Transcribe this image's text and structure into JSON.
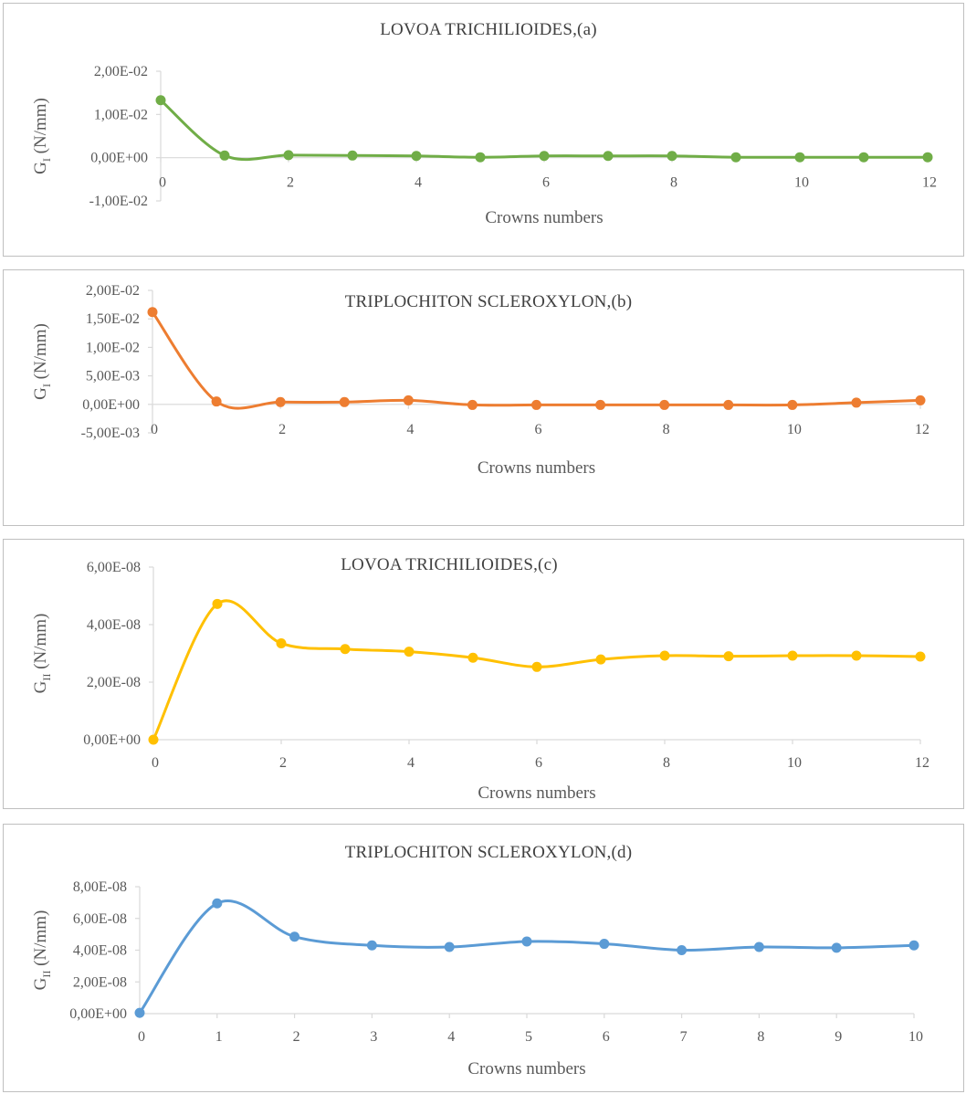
{
  "chart_data": [
    {
      "type": "line",
      "title": "LOVOA TRICHILIOIDES,(a)",
      "xlabel": "Crowns numbers",
      "ylabel": "G",
      "ylabel_sub": "I",
      "ylabel_unit": " (N/mm)",
      "ylim": [
        -0.01,
        0.02
      ],
      "yticks": [
        -0.01,
        0,
        0.01,
        0.02
      ],
      "ytick_labels": [
        "-1,00E-02",
        "0,00E+00",
        "1,00E-02",
        "2,00E-02"
      ],
      "xlim": [
        0,
        12
      ],
      "xticks": [
        0,
        2,
        4,
        6,
        8,
        10,
        12
      ],
      "xtick_labels": [
        "0",
        "2",
        "4",
        "6",
        "8",
        "10",
        "12"
      ],
      "x": [
        0,
        1,
        2,
        3,
        4,
        5,
        6,
        7,
        8,
        9,
        10,
        11,
        12
      ],
      "series": [
        {
          "color": "#70ad47",
          "values": [
            0.0133,
            0.0005,
            0.0006,
            0.0005,
            0.0004,
            0.0001,
            0.0004,
            0.0004,
            0.0004,
            0.0001,
            0.0001,
            0.0001,
            0.0001
          ]
        }
      ]
    },
    {
      "type": "line",
      "title": "TRIPLOCHITON SCLEROXYLON,(b)",
      "xlabel": "Crowns numbers",
      "ylabel": "G",
      "ylabel_sub": "I",
      "ylabel_unit": " (N/mm)",
      "ylim": [
        -0.005,
        0.02
      ],
      "yticks": [
        -0.005,
        0,
        0.005,
        0.01,
        0.015,
        0.02
      ],
      "ytick_labels": [
        "-5,00E-03",
        "0,00E+00",
        "5,00E-03",
        "1,00E-02",
        "1,50E-02",
        "2,00E-02"
      ],
      "xlim": [
        0,
        12
      ],
      "xticks": [
        0,
        2,
        4,
        6,
        8,
        10,
        12
      ],
      "xtick_labels": [
        "0",
        "2",
        "4",
        "6",
        "8",
        "10",
        "12"
      ],
      "x": [
        0,
        1,
        2,
        3,
        4,
        5,
        6,
        7,
        8,
        9,
        10,
        11,
        12
      ],
      "series": [
        {
          "color": "#ed7d31",
          "values": [
            0.0162,
            0.0005,
            0.0004,
            0.0004,
            0.0007,
            -0.0001,
            -0.0001,
            -0.0001,
            -0.0001,
            -0.0001,
            -0.0001,
            0.0003,
            0.0007
          ]
        }
      ]
    },
    {
      "type": "line",
      "title": "LOVOA TRICHILIOIDES,(c)",
      "xlabel": "Crowns numbers",
      "ylabel": "G",
      "ylabel_sub": "II",
      "ylabel_unit": " (N/mm)",
      "ylim": [
        0,
        6e-08
      ],
      "yticks": [
        0,
        2e-08,
        4e-08,
        6e-08
      ],
      "ytick_labels": [
        "0,00E+00",
        "2,00E-08",
        "4,00E-08",
        "6,00E-08"
      ],
      "xlim": [
        0,
        12
      ],
      "xticks": [
        0,
        2,
        4,
        6,
        8,
        10,
        12
      ],
      "xtick_labels": [
        "0",
        "2",
        "4",
        "6",
        "8",
        "10",
        "12"
      ],
      "x": [
        0,
        1,
        2,
        3,
        4,
        5,
        6,
        7,
        8,
        9,
        10,
        11,
        12
      ],
      "series": [
        {
          "color": "#ffc000",
          "values": [
            0,
            4.72e-08,
            3.35e-08,
            3.15e-08,
            3.06e-08,
            2.85e-08,
            2.53e-08,
            2.79e-08,
            2.92e-08,
            2.9e-08,
            2.92e-08,
            2.92e-08,
            2.89e-08
          ]
        }
      ]
    },
    {
      "type": "line",
      "title": "TRIPLOCHITON SCLEROXYLON,(d)",
      "xlabel": "Crowns numbers",
      "ylabel": "G",
      "ylabel_sub": "II",
      "ylabel_unit": " (N/mm)",
      "ylim": [
        0,
        8e-08
      ],
      "yticks": [
        0,
        2e-08,
        4e-08,
        6e-08,
        8e-08
      ],
      "ytick_labels": [
        "0,00E+00",
        "2,00E-08",
        "4,00E-08",
        "6,00E-08",
        "8,00E-08"
      ],
      "xlim": [
        0,
        10
      ],
      "xticks": [
        0,
        1,
        2,
        3,
        4,
        5,
        6,
        7,
        8,
        9,
        10
      ],
      "xtick_labels": [
        "0",
        "1",
        "2",
        "3",
        "4",
        "5",
        "6",
        "7",
        "8",
        "9",
        "10"
      ],
      "x": [
        0,
        1,
        2,
        3,
        4,
        5,
        6,
        7,
        8,
        9,
        10
      ],
      "series": [
        {
          "color": "#5b9bd5",
          "values": [
            5e-10,
            6.95e-08,
            4.85e-08,
            4.3e-08,
            4.2e-08,
            4.55e-08,
            4.4e-08,
            4e-08,
            4.2e-08,
            4.15e-08,
            4.3e-08
          ]
        }
      ]
    }
  ]
}
